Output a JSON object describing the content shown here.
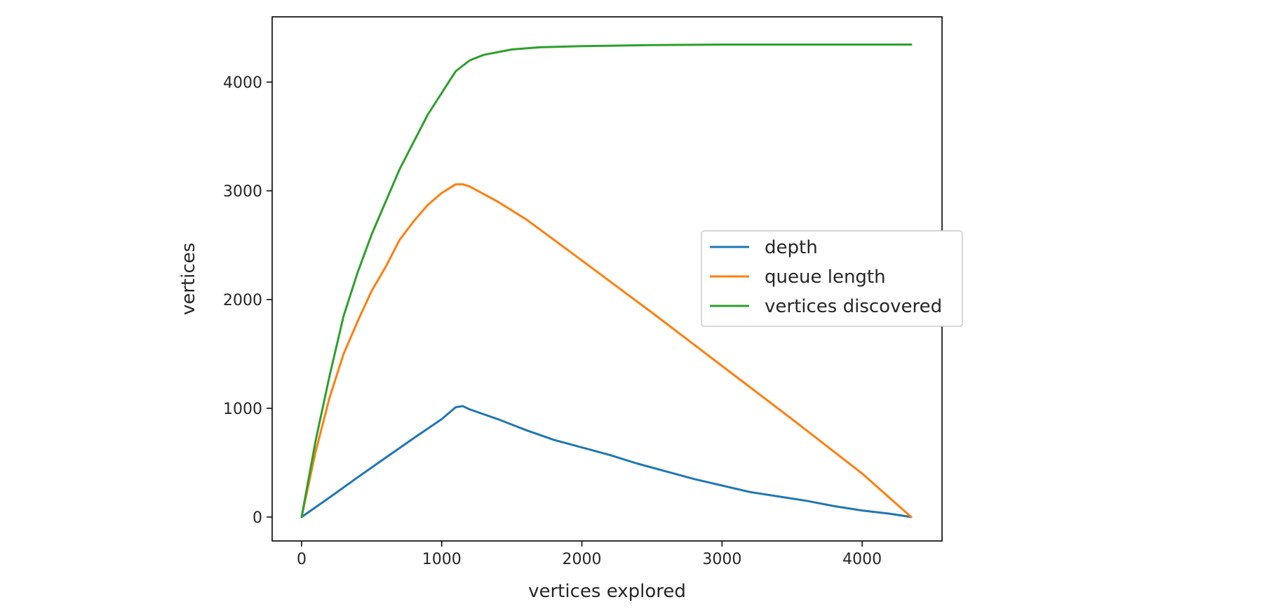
{
  "chart_data": {
    "type": "line",
    "title": "",
    "xlabel": "vertices explored",
    "ylabel": "vertices",
    "xlim": [
      -210,
      4570
    ],
    "ylim": [
      -220,
      4600
    ],
    "xticks": [
      0,
      1000,
      2000,
      3000,
      4000
    ],
    "yticks": [
      0,
      1000,
      2000,
      3000,
      4000
    ],
    "xtick_labels": [
      "0",
      "1000",
      "2000",
      "3000",
      "4000"
    ],
    "ytick_labels": [
      "0",
      "1000",
      "2000",
      "3000",
      "4000"
    ],
    "grid": false,
    "legend": {
      "position": "center-right",
      "entries": [
        "depth",
        "queue length",
        "vertices discovered"
      ]
    },
    "series": [
      {
        "name": "depth",
        "color": "#1f77b4",
        "x": [
          0,
          200,
          400,
          600,
          800,
          1000,
          1100,
          1150,
          1200,
          1400,
          1600,
          1800,
          2000,
          2200,
          2400,
          2600,
          2800,
          3000,
          3200,
          3400,
          3600,
          3800,
          4000,
          4200,
          4350
        ],
        "y": [
          0,
          180,
          365,
          545,
          725,
          900,
          1010,
          1020,
          990,
          900,
          800,
          710,
          640,
          570,
          490,
          420,
          350,
          290,
          230,
          190,
          150,
          100,
          60,
          30,
          0
        ]
      },
      {
        "name": "queue length",
        "color": "#ff7f0e",
        "x": [
          0,
          100,
          200,
          300,
          400,
          500,
          600,
          700,
          800,
          900,
          1000,
          1100,
          1150,
          1200,
          1400,
          1600,
          1800,
          2000,
          2500,
          3000,
          3500,
          4000,
          4350
        ],
        "y": [
          0,
          600,
          1100,
          1500,
          1800,
          2080,
          2300,
          2550,
          2720,
          2870,
          2980,
          3060,
          3060,
          3040,
          2900,
          2740,
          2550,
          2360,
          1880,
          1390,
          900,
          400,
          0
        ]
      },
      {
        "name": "vertices discovered",
        "color": "#2ca02c",
        "x": [
          0,
          100,
          200,
          300,
          400,
          500,
          600,
          700,
          800,
          900,
          1000,
          1100,
          1200,
          1300,
          1500,
          1700,
          2000,
          2500,
          3000,
          3500,
          4000,
          4350
        ],
        "y": [
          0,
          700,
          1300,
          1850,
          2250,
          2600,
          2900,
          3200,
          3450,
          3700,
          3900,
          4100,
          4200,
          4250,
          4300,
          4320,
          4330,
          4340,
          4345,
          4345,
          4345,
          4345
        ]
      }
    ]
  }
}
